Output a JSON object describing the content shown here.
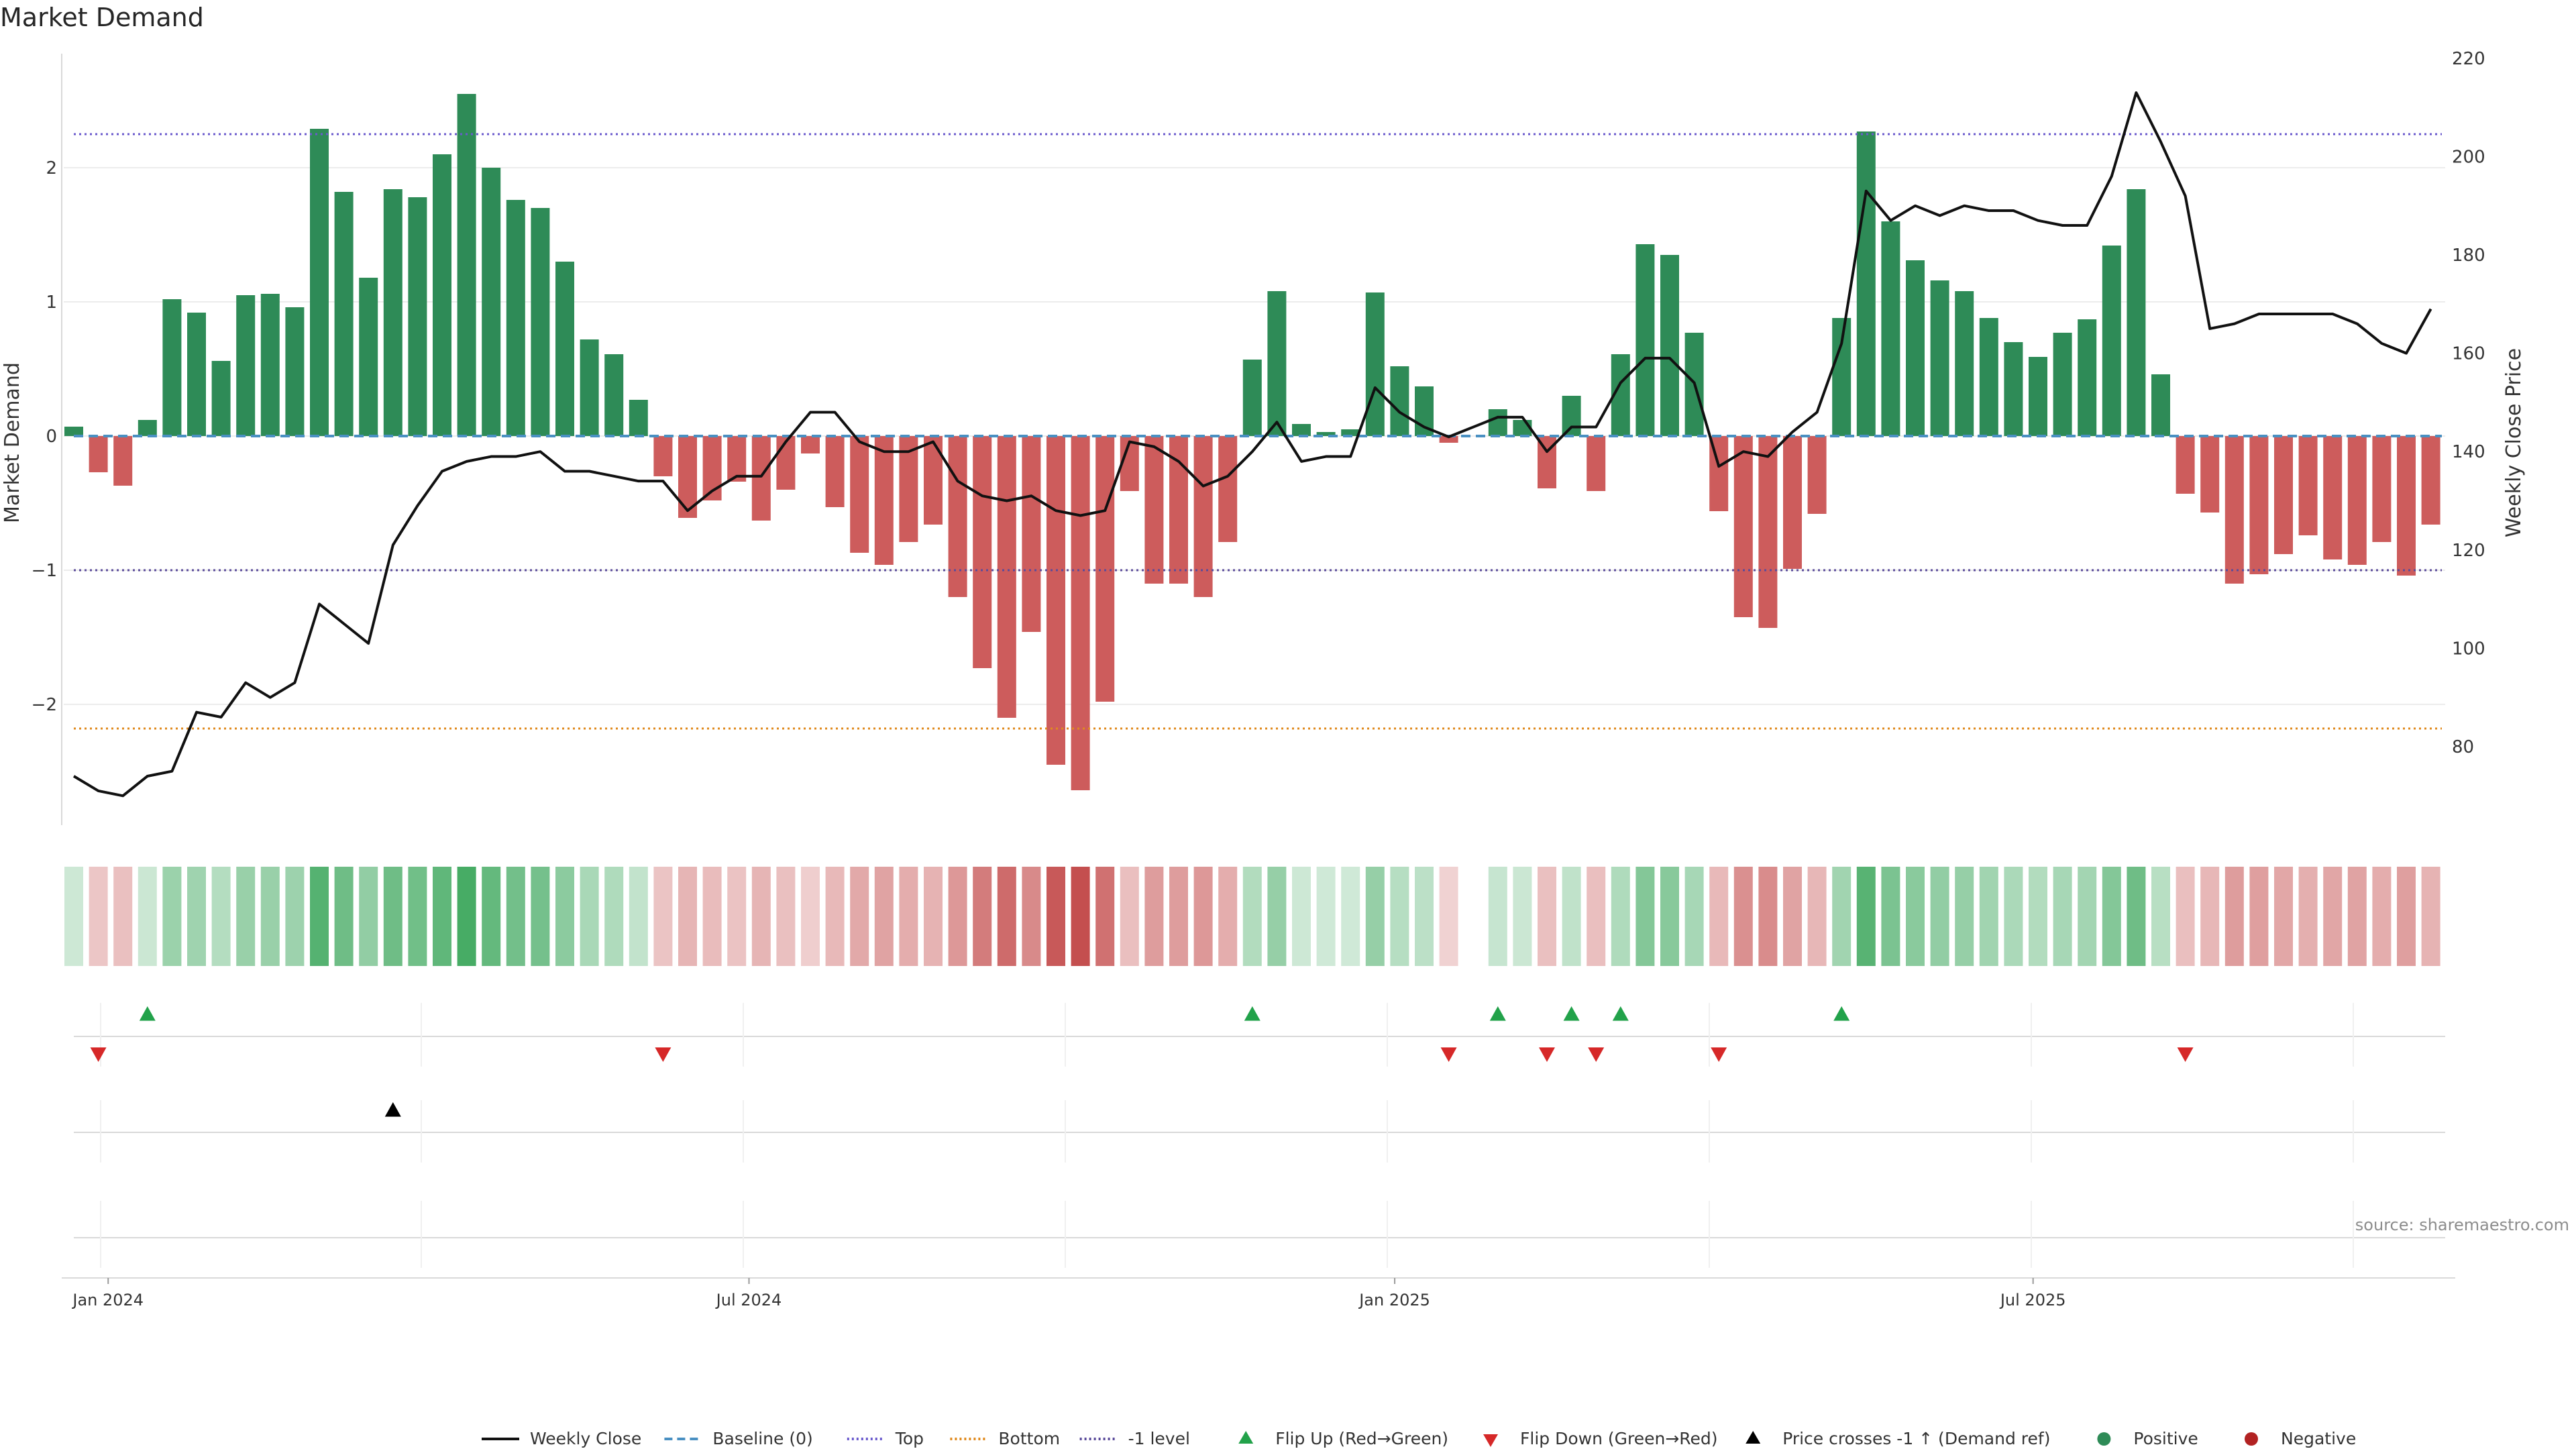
{
  "title": "Market Demand",
  "source_note": "source: sharemaestro.com",
  "chart_data": {
    "type": "bar",
    "title": "Market Demand",
    "ylabel": "Market Demand",
    "y2label": "Weekly Close Price",
    "ylim": [
      -2.9,
      2.85
    ],
    "y2lim": [
      60,
      220
    ],
    "y_ticks": [
      -2,
      -1,
      0,
      1,
      2
    ],
    "y_tick_labels": [
      "−2",
      "−1",
      "0",
      "1",
      "2"
    ],
    "y2_ticks": [
      80,
      100,
      120,
      140,
      160,
      180,
      200,
      220
    ],
    "x_tick_labels": [
      "Jan 2024",
      "Jul 2024",
      "Jan 2025",
      "Jul 2025"
    ],
    "x_tick_weeks": [
      1.4,
      27.5,
      53.8,
      79.8
    ],
    "reference_lines": [
      {
        "name": "Top",
        "value": 2.25,
        "color": "#6a5acd",
        "style": "dotted"
      },
      {
        "name": "Bottom",
        "value": -2.18,
        "color": "#e08a1e",
        "style": "dotted"
      },
      {
        "name": "-1 level",
        "value": -1,
        "color": "#5a4a9a",
        "style": "dotted"
      },
      {
        "name": "Baseline (0)",
        "value": 0,
        "color": "#4a90c2",
        "style": "dashed"
      }
    ],
    "colors": {
      "positive": "#2e8b57",
      "negative": "#cd5c5c",
      "price": "#111111",
      "flip_up": "#22a24a",
      "flip_down": "#d62828",
      "cross": "#000000"
    },
    "demand": [
      0.07,
      -0.27,
      -0.37,
      0.12,
      1.02,
      0.92,
      0.56,
      1.05,
      1.06,
      0.96,
      2.29,
      1.82,
      1.18,
      1.84,
      1.78,
      2.1,
      2.55,
      2.0,
      1.76,
      1.7,
      1.3,
      0.72,
      0.61,
      0.27,
      -0.3,
      -0.61,
      -0.48,
      -0.34,
      -0.63,
      -0.4,
      -0.13,
      -0.53,
      -0.87,
      -0.96,
      -0.79,
      -0.66,
      -1.2,
      -1.73,
      -2.1,
      -1.46,
      -2.45,
      -2.64,
      -1.98,
      -0.41,
      -1.1,
      -1.1,
      -1.2,
      -0.79,
      0.57,
      1.08,
      0.09,
      0.03,
      0.05,
      1.07,
      0.52,
      0.37,
      -0.05,
      0.0,
      0.2,
      0.12,
      -0.39,
      0.3,
      -0.41,
      0.61,
      1.43,
      1.35,
      0.77,
      -0.56,
      -1.35,
      -1.43,
      -0.99,
      -0.58,
      0.88,
      2.27,
      1.6,
      1.31,
      1.16,
      1.08,
      0.88,
      0.7,
      0.59,
      0.77,
      0.87,
      1.42,
      1.84,
      0.46,
      -0.43,
      -0.57,
      -1.1,
      -1.03,
      -0.88,
      -0.74,
      -0.92,
      -0.96,
      -0.79,
      -1.04,
      -0.66
    ],
    "weekly_close": [
      74,
      71,
      70,
      74,
      75,
      87,
      86,
      93,
      90,
      93,
      109,
      105,
      101,
      121,
      129,
      136,
      138,
      139,
      139,
      140,
      136,
      136,
      135,
      134,
      134,
      128,
      132,
      135,
      135,
      142,
      148,
      148,
      142,
      140,
      140,
      142,
      134,
      131,
      130,
      131,
      128,
      127,
      128,
      142,
      141,
      138,
      133,
      135,
      140,
      146,
      138,
      139,
      139,
      153,
      148,
      145,
      143,
      145,
      147,
      147,
      140,
      145,
      145,
      154,
      159,
      159,
      154,
      137,
      140,
      139,
      144,
      148,
      162,
      193,
      187,
      190,
      188,
      190,
      189,
      189,
      187,
      186,
      186,
      196,
      213,
      203,
      192,
      165,
      166,
      168,
      168,
      168,
      168,
      166,
      162,
      160,
      169
    ],
    "flip_up_weeks": [
      3,
      48,
      58,
      61,
      63,
      72
    ],
    "flip_down_weeks": [
      1,
      24,
      56,
      60,
      62,
      67,
      86
    ],
    "cross_weeks": [
      13
    ]
  },
  "legend": [
    {
      "label": "Weekly Close",
      "kind": "line",
      "color": "#111111",
      "dash": ""
    },
    {
      "label": "Baseline (0)",
      "kind": "line",
      "color": "#4a90c2",
      "dash": "12,7"
    },
    {
      "label": "Top",
      "kind": "line",
      "color": "#6a5acd",
      "dash": "3,4"
    },
    {
      "label": "Bottom",
      "kind": "line",
      "color": "#e08a1e",
      "dash": "3,4"
    },
    {
      "label": "-1 level",
      "kind": "line",
      "color": "#5a4a9a",
      "dash": "3,4"
    },
    {
      "label": "Flip Up (Red→Green)",
      "kind": "tri-up",
      "color": "#22a24a"
    },
    {
      "label": "Flip Down (Green→Red)",
      "kind": "tri-down",
      "color": "#d62828"
    },
    {
      "label": "Price crosses -1 ↑ (Demand ref)",
      "kind": "tri-up",
      "color": "#000000"
    },
    {
      "label": "Positive",
      "kind": "dot",
      "color": "#2e8b57"
    },
    {
      "label": "Negative",
      "kind": "dot",
      "color": "#b22222"
    }
  ]
}
